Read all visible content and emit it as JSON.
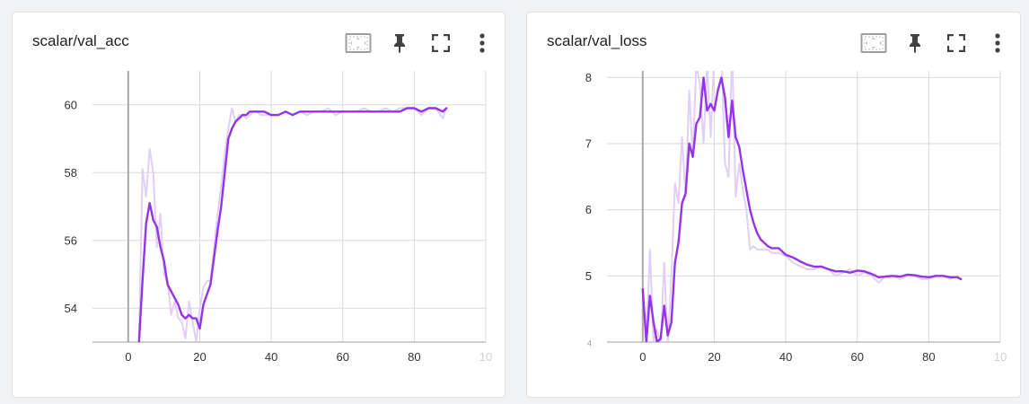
{
  "toolbar": {
    "icons": [
      "fit-domain-icon",
      "pin-icon",
      "fullscreen-icon",
      "more-vert-icon"
    ]
  },
  "colors": {
    "smoothed": "#9334e6",
    "raw": "#e2cff7",
    "grid": "#d9d9d9",
    "axis": "#9e9e9e",
    "tick_text": "#333333"
  },
  "cards": [
    {
      "title": "scalar/val_acc",
      "chart_data": {
        "type": "line",
        "title": "scalar/val_acc",
        "xlabel": "",
        "ylabel": "",
        "xlim": [
          -10,
          100
        ],
        "ylim": [
          53,
          61
        ],
        "xticks": [
          "0",
          "20",
          "40",
          "60",
          "80",
          "10"
        ],
        "yticks": [
          "54",
          "56",
          "58",
          "60"
        ],
        "grid": true,
        "legend": "none",
        "series": [
          {
            "role": "raw",
            "x": [
              3,
              4,
              5,
              6,
              7,
              8,
              9,
              10,
              11,
              12,
              13,
              14,
              15,
              16,
              17,
              18,
              19,
              20,
              21,
              22,
              23,
              24,
              25,
              26,
              27,
              28,
              29,
              30,
              31,
              32,
              33,
              34,
              35,
              36,
              37,
              38,
              40,
              42,
              44,
              46,
              48,
              50,
              52,
              54,
              56,
              58,
              60,
              62,
              64,
              66,
              68,
              70,
              72,
              74,
              76,
              78,
              80,
              82,
              84,
              86,
              88,
              89
            ],
            "y": [
              53.0,
              58.1,
              57.3,
              58.7,
              58.0,
              55.8,
              56.8,
              55.0,
              54.8,
              53.8,
              54.2,
              53.7,
              53.6,
              53.1,
              54.2,
              53.6,
              53.0,
              54.0,
              54.6,
              54.8,
              54.8,
              55.8,
              56.8,
              57.6,
              58.6,
              59.3,
              59.9,
              59.5,
              59.7,
              59.7,
              59.6,
              59.7,
              59.8,
              59.8,
              59.7,
              59.7,
              59.7,
              59.7,
              59.8,
              59.7,
              59.8,
              59.7,
              59.8,
              59.8,
              59.9,
              59.7,
              59.8,
              59.8,
              59.8,
              59.9,
              59.8,
              59.8,
              59.9,
              59.8,
              59.9,
              59.9,
              59.9,
              59.7,
              59.9,
              59.9,
              59.6,
              59.9
            ]
          },
          {
            "role": "smoothed",
            "x": [
              3,
              4,
              5,
              6,
              7,
              8,
              9,
              10,
              11,
              12,
              13,
              14,
              15,
              16,
              17,
              18,
              19,
              20,
              21,
              22,
              23,
              24,
              25,
              26,
              27,
              28,
              29,
              30,
              31,
              32,
              33,
              34,
              35,
              36,
              37,
              38,
              40,
              42,
              44,
              46,
              48,
              50,
              52,
              54,
              56,
              58,
              60,
              62,
              64,
              66,
              68,
              70,
              72,
              74,
              76,
              78,
              80,
              82,
              84,
              86,
              88,
              89
            ],
            "y": [
              53.0,
              54.8,
              56.5,
              57.1,
              56.6,
              56.4,
              55.8,
              55.4,
              54.7,
              54.5,
              54.3,
              54.1,
              53.8,
              53.7,
              53.8,
              53.7,
              53.7,
              53.4,
              54.1,
              54.4,
              54.7,
              55.5,
              56.3,
              57.0,
              58.0,
              59.0,
              59.3,
              59.5,
              59.6,
              59.7,
              59.7,
              59.8,
              59.8,
              59.8,
              59.8,
              59.8,
              59.7,
              59.7,
              59.8,
              59.7,
              59.8,
              59.8,
              59.8,
              59.8,
              59.8,
              59.8,
              59.8,
              59.8,
              59.8,
              59.8,
              59.8,
              59.8,
              59.8,
              59.8,
              59.8,
              59.9,
              59.9,
              59.8,
              59.9,
              59.9,
              59.8,
              59.9
            ]
          }
        ]
      }
    },
    {
      "title": "scalar/val_loss",
      "chart_data": {
        "type": "line",
        "title": "scalar/val_loss",
        "xlabel": "",
        "ylabel": "",
        "xlim": [
          -10,
          100
        ],
        "ylim": [
          4,
          8.1
        ],
        "xticks": [
          "0",
          "20",
          "40",
          "60",
          "80",
          "10"
        ],
        "yticks": [
          "4",
          "5",
          "6",
          "7",
          "8"
        ],
        "grid": true,
        "legend": "none",
        "series": [
          {
            "role": "raw",
            "x": [
              0,
              1,
              2,
              3,
              4,
              5,
              6,
              7,
              8,
              9,
              10,
              11,
              12,
              13,
              14,
              15,
              16,
              17,
              18,
              19,
              20,
              21,
              22,
              23,
              24,
              25,
              26,
              27,
              28,
              29,
              30,
              31,
              32,
              33,
              34,
              35,
              36,
              38,
              40,
              42,
              44,
              46,
              48,
              50,
              52,
              54,
              56,
              58,
              60,
              62,
              64,
              66,
              68,
              70,
              72,
              74,
              76,
              78,
              80,
              82,
              84,
              86,
              88,
              89
            ],
            "y": [
              4.8,
              4.0,
              5.4,
              4.0,
              4.2,
              3.95,
              5.2,
              3.95,
              5.0,
              6.4,
              6.1,
              7.1,
              6.2,
              7.8,
              6.8,
              8.2,
              7.9,
              7.0,
              8.2,
              7.1,
              8.4,
              8.3,
              8.4,
              6.7,
              6.5,
              8.4,
              6.2,
              6.7,
              6.3,
              6.0,
              5.4,
              5.45,
              5.4,
              5.4,
              5.4,
              5.4,
              5.35,
              5.35,
              5.3,
              5.2,
              5.15,
              5.1,
              5.1,
              5.15,
              5.1,
              5.0,
              5.05,
              5.1,
              5.0,
              5.05,
              5.0,
              4.9,
              5.0,
              5.0,
              4.95,
              5.0,
              5.0,
              4.95,
              4.95,
              5.0,
              5.0,
              4.95,
              5.0,
              4.95
            ]
          },
          {
            "role": "smoothed",
            "x": [
              0,
              1,
              2,
              3,
              4,
              5,
              6,
              7,
              8,
              9,
              10,
              11,
              12,
              13,
              14,
              15,
              16,
              17,
              18,
              19,
              20,
              21,
              22,
              23,
              24,
              25,
              26,
              27,
              28,
              29,
              30,
              31,
              32,
              33,
              34,
              35,
              36,
              38,
              40,
              42,
              44,
              46,
              48,
              50,
              52,
              54,
              56,
              58,
              60,
              62,
              64,
              66,
              68,
              70,
              72,
              74,
              76,
              78,
              80,
              82,
              84,
              86,
              88,
              89
            ],
            "y": [
              4.8,
              4.0,
              4.7,
              4.3,
              4.0,
              4.05,
              4.55,
              4.1,
              4.3,
              5.2,
              5.5,
              6.1,
              6.25,
              7.0,
              6.8,
              7.3,
              7.4,
              8.0,
              7.5,
              7.6,
              7.5,
              7.8,
              8.0,
              7.7,
              7.1,
              7.65,
              7.1,
              6.95,
              6.6,
              6.3,
              6.0,
              5.8,
              5.65,
              5.55,
              5.5,
              5.45,
              5.42,
              5.42,
              5.32,
              5.28,
              5.22,
              5.17,
              5.14,
              5.14,
              5.1,
              5.07,
              5.07,
              5.05,
              5.08,
              5.07,
              5.03,
              4.98,
              4.99,
              5.0,
              4.99,
              5.02,
              5.01,
              4.99,
              4.98,
              5.0,
              5.0,
              4.98,
              4.98,
              4.95
            ]
          }
        ]
      }
    }
  ]
}
